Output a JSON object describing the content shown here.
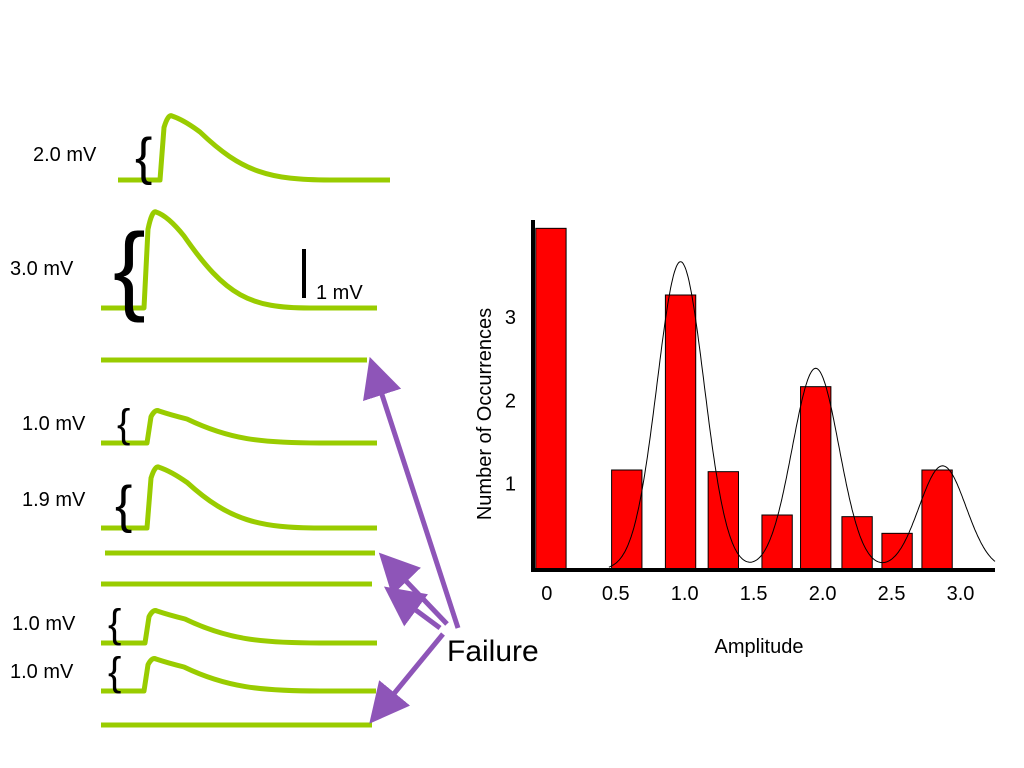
{
  "colors": {
    "trace": "#99cc00",
    "arrow": "#8e55b8",
    "bar": "#ff0000",
    "bar_outline": "#000000",
    "axis": "#000000"
  },
  "traces": [
    {
      "label": "2.0 mV",
      "amplitude_mV": 2.0,
      "failure": false
    },
    {
      "label": "3.0 mV",
      "amplitude_mV": 3.0,
      "failure": false
    },
    {
      "label": "",
      "amplitude_mV": 0,
      "failure": true
    },
    {
      "label": "1.0 mV",
      "amplitude_mV": 1.0,
      "failure": false
    },
    {
      "label": "1.9 mV",
      "amplitude_mV": 1.9,
      "failure": false
    },
    {
      "label": "",
      "amplitude_mV": 0,
      "failure": true
    },
    {
      "label": "",
      "amplitude_mV": 0,
      "failure": true
    },
    {
      "label": "1.0 mV",
      "amplitude_mV": 1.0,
      "failure": false
    },
    {
      "label": "1.0 mV",
      "amplitude_mV": 1.0,
      "failure": false
    },
    {
      "label": "",
      "amplitude_mV": 0,
      "failure": true
    }
  ],
  "scale_bar_label": "1 mV",
  "failure_label": "Failure",
  "chart_data": {
    "type": "bar",
    "xlabel": "Amplitude",
    "ylabel": "Number of Occurrences",
    "x_tick_labels": [
      "0",
      "0.5",
      "1.0",
      "1.5",
      "2.0",
      "2.5",
      "3.0"
    ],
    "x_ticks": [
      0,
      0.5,
      1.0,
      1.5,
      2.0,
      2.5,
      3.0
    ],
    "y_tick_labels": [
      "1",
      "2",
      "3"
    ],
    "y_ticks": [
      1,
      2,
      3
    ],
    "xlim": [
      -0.1,
      3.25
    ],
    "ylim": [
      0,
      4.2
    ],
    "bars": [
      {
        "x": 0.03,
        "value": 4.1
      },
      {
        "x": 0.58,
        "value": 1.2
      },
      {
        "x": 0.97,
        "value": 3.3
      },
      {
        "x": 1.28,
        "value": 1.18
      },
      {
        "x": 1.67,
        "value": 0.66
      },
      {
        "x": 1.95,
        "value": 2.2
      },
      {
        "x": 2.25,
        "value": 0.64
      },
      {
        "x": 2.54,
        "value": 0.44
      },
      {
        "x": 2.83,
        "value": 1.2
      }
    ],
    "bar_width": 0.22,
    "fit_peaks": [
      {
        "center": 0.97,
        "height": 3.7
      },
      {
        "center": 1.95,
        "height": 2.42
      },
      {
        "center": 2.87,
        "height": 1.25
      }
    ],
    "fit_sigma": 0.17,
    "grid": false,
    "legend": "none"
  }
}
